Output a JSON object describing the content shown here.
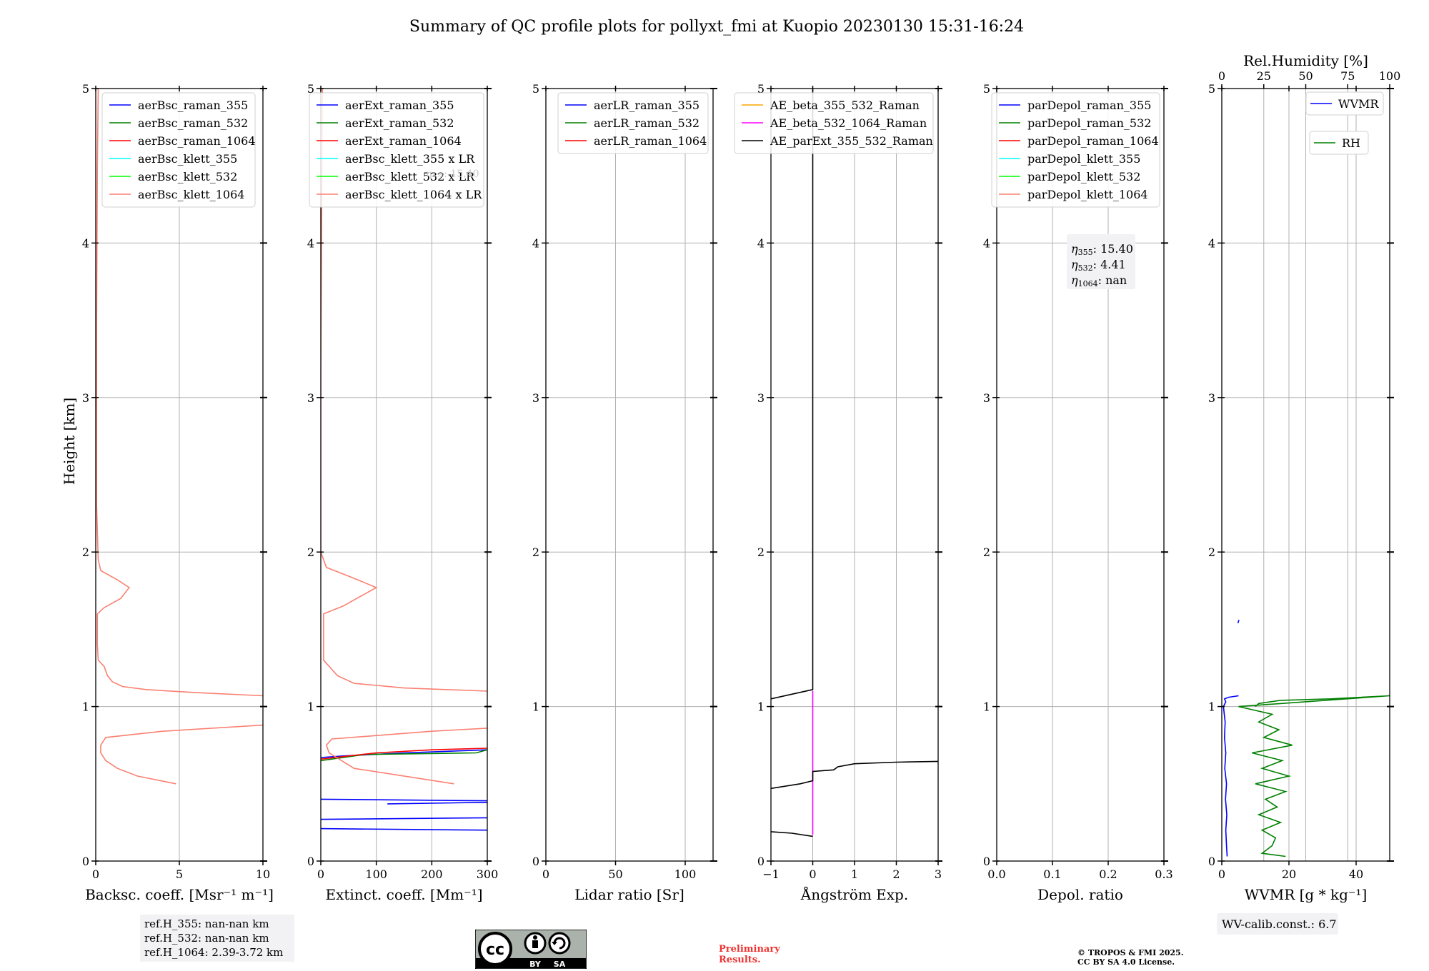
{
  "title": "Summary of QC profile plots for pollyxt_fmi at Kuopio 20230130 15:31-16:24",
  "chart_data": [
    {
      "type": "line",
      "xlabel": "Backsc. coeff. [Msr⁻¹ m⁻¹]",
      "ylabel": "Height [km]",
      "xlim": [
        0,
        10
      ],
      "ylim": [
        0,
        5
      ],
      "xticks": [
        "0",
        "5",
        "10"
      ],
      "xtick_values": [
        0,
        5,
        10
      ],
      "yticks": [
        "0",
        "1",
        "2",
        "3",
        "4",
        "5"
      ],
      "grid": true,
      "legend_position": "top-right",
      "series": [
        {
          "name": "aerBsc_raman_355",
          "color": "#0000ff",
          "points": []
        },
        {
          "name": "aerBsc_raman_532",
          "color": "#008000",
          "points": []
        },
        {
          "name": "aerBsc_raman_1064",
          "color": "#ff0000",
          "points": []
        },
        {
          "name": "aerBsc_klett_355",
          "color": "#00ffff",
          "points": []
        },
        {
          "name": "aerBsc_klett_532",
          "color": "#00ff00",
          "points": []
        },
        {
          "name": "aerBsc_klett_1064",
          "color": "#fa8072",
          "points": [
            [
              4.8,
              0.5
            ],
            [
              2.5,
              0.55
            ],
            [
              1.3,
              0.6
            ],
            [
              0.6,
              0.65
            ],
            [
              0.3,
              0.7
            ],
            [
              0.3,
              0.75
            ],
            [
              0.6,
              0.8
            ],
            [
              4,
              0.84
            ],
            [
              10,
              0.88
            ]
          ]
        },
        {
          "name": "aerBsc_klett_1064",
          "color": "#fa8072",
          "points": [
            [
              10,
              1.07
            ],
            [
              6,
              1.09
            ],
            [
              3,
              1.11
            ],
            [
              1.6,
              1.13
            ],
            [
              1,
              1.16
            ],
            [
              0.7,
              1.2
            ],
            [
              0.5,
              1.26
            ],
            [
              0.15,
              1.3
            ],
            [
              0.1,
              1.4
            ],
            [
              0.1,
              1.6
            ],
            [
              0.5,
              1.64
            ],
            [
              1.5,
              1.7
            ],
            [
              2,
              1.77
            ],
            [
              1.3,
              1.82
            ],
            [
              0.3,
              1.88
            ],
            [
              0.15,
              1.95
            ],
            [
              0.05,
              2.3
            ],
            [
              0.05,
              3.5
            ],
            [
              0.1,
              4.5
            ],
            [
              0.15,
              5
            ]
          ]
        }
      ]
    },
    {
      "type": "line",
      "xlabel": "Extinct. coeff. [Mm⁻¹]",
      "xlim": [
        0,
        300
      ],
      "ylim": [
        0,
        5
      ],
      "xticks": [
        "0",
        "100",
        "200",
        "300"
      ],
      "xtick_values": [
        0,
        100,
        200,
        300
      ],
      "yticks": [
        "0",
        "1",
        "2",
        "3",
        "4",
        "5"
      ],
      "grid": true,
      "legend_position": "top-right",
      "series": [
        {
          "name": "aerExt_raman_355",
          "color": "#0000ff",
          "points": [
            [
              300,
              0.2
            ],
            [
              0,
              0.21
            ]
          ]
        },
        {
          "name": "aerExt_raman_355",
          "color": "#0000ff",
          "points": [
            [
              0,
              0.27
            ],
            [
              300,
              0.28
            ]
          ]
        },
        {
          "name": "aerExt_raman_355",
          "color": "#0000ff",
          "points": [
            [
              120,
              0.37
            ],
            [
              300,
              0.38
            ]
          ]
        },
        {
          "name": "aerExt_raman_355",
          "color": "#0000ff",
          "points": [
            [
              0,
              0.4
            ],
            [
              300,
              0.39
            ]
          ]
        },
        {
          "name": "aerExt_raman_355",
          "color": "#0000ff",
          "points": [
            [
              0,
              0.67
            ],
            [
              40,
              0.68
            ],
            [
              150,
              0.7
            ],
            [
              300,
              0.72
            ]
          ]
        },
        {
          "name": "aerExt_raman_532",
          "color": "#008000",
          "points": [
            [
              0,
              0.65
            ],
            [
              80,
              0.69
            ],
            [
              280,
              0.7
            ],
            [
              300,
              0.72
            ]
          ]
        },
        {
          "name": "aerExt_raman_1064",
          "color": "#ff0000",
          "points": [
            [
              0,
              0.66
            ],
            [
              100,
              0.7
            ],
            [
              200,
              0.72
            ],
            [
              300,
              0.73
            ]
          ]
        },
        {
          "name": "aerBsc_klett_355 x LR",
          "color": "#00ffff",
          "points": []
        },
        {
          "name": "aerBsc_klett_532 x LR",
          "color": "#00ff00",
          "points": []
        },
        {
          "name": "aerBsc_klett_1064 x LR",
          "color": "#fa8072",
          "points": [
            [
              240,
              0.5
            ],
            [
              60,
              0.6
            ],
            [
              15,
              0.7
            ],
            [
              10,
              0.75
            ],
            [
              20,
              0.79
            ],
            [
              200,
              0.84
            ],
            [
              300,
              0.86
            ]
          ]
        },
        {
          "name": "aerBsc_klett_1064 x LR",
          "color": "#fa8072",
          "points": [
            [
              300,
              1.1
            ],
            [
              150,
              1.12
            ],
            [
              60,
              1.15
            ],
            [
              30,
              1.2
            ],
            [
              5,
              1.3
            ],
            [
              5,
              1.6
            ],
            [
              40,
              1.65
            ],
            [
              100,
              1.77
            ],
            [
              60,
              1.83
            ],
            [
              10,
              1.9
            ],
            [
              0,
              2.0
            ],
            [
              0,
              3.2
            ],
            [
              2,
              4.5
            ],
            [
              3,
              5
            ]
          ]
        }
      ],
      "legend_overflow_text": "η₃₅₅: 15.40"
    },
    {
      "type": "line",
      "xlabel": "Lidar ratio [Sr]",
      "xlim": [
        0,
        120
      ],
      "ylim": [
        0,
        5
      ],
      "xticks": [
        "0",
        "50",
        "100"
      ],
      "xtick_values": [
        0,
        50,
        100
      ],
      "yticks": [
        "0",
        "1",
        "2",
        "3",
        "4",
        "5"
      ],
      "grid": true,
      "legend_position": "top-right",
      "series": [
        {
          "name": "aerLR_raman_355",
          "color": "#0000ff",
          "points": []
        },
        {
          "name": "aerLR_raman_532",
          "color": "#008000",
          "points": []
        },
        {
          "name": "aerLR_raman_1064",
          "color": "#ff0000",
          "points": []
        }
      ]
    },
    {
      "type": "line",
      "xlabel": "Ångström Exp.",
      "xlim": [
        -1,
        3
      ],
      "ylim": [
        0,
        5
      ],
      "xticks": [
        "−1",
        "0",
        "1",
        "2",
        "3"
      ],
      "xtick_values": [
        -1,
        0,
        1,
        2,
        3
      ],
      "yticks": [
        "0",
        "1",
        "2",
        "3",
        "4",
        "5"
      ],
      "grid": true,
      "legend_position": "top-left",
      "series": [
        {
          "name": "AE_beta_355_532_Raman",
          "color": "#ffa500",
          "points": []
        },
        {
          "name": "AE_beta_532_1064_Raman",
          "color": "#ff00ff",
          "points": [
            [
              0,
              0.17
            ],
            [
              0,
              1.1
            ]
          ]
        },
        {
          "name": "AE_parExt_355_532_Raman",
          "color": "#000000",
          "points": [
            [
              0,
              0.16
            ],
            [
              -0.5,
              0.18
            ],
            [
              -1,
              0.19
            ]
          ]
        },
        {
          "name": "AE_parExt_355_532_Raman",
          "color": "#000000",
          "points": [
            [
              -1,
              0.47
            ],
            [
              -0.3,
              0.5
            ],
            [
              0,
              0.52
            ],
            [
              0,
              0.58
            ],
            [
              0.5,
              0.59
            ],
            [
              0.6,
              0.61
            ],
            [
              1,
              0.63
            ],
            [
              2,
              0.64
            ],
            [
              3,
              0.645
            ]
          ]
        },
        {
          "name": "AE_parExt_355_532_Raman",
          "color": "#000000",
          "points": [
            [
              -1,
              1.05
            ],
            [
              -0.5,
              1.08
            ],
            [
              0,
              1.11
            ],
            [
              0,
              1.12
            ],
            [
              0,
              5
            ]
          ]
        }
      ]
    },
    {
      "type": "line",
      "xlabel": "Depol. ratio",
      "xlim": [
        0,
        0.3
      ],
      "ylim": [
        0,
        5
      ],
      "xticks": [
        "0.0",
        "0.1",
        "0.2",
        "0.3"
      ],
      "xtick_values": [
        0,
        0.1,
        0.2,
        0.3
      ],
      "yticks": [
        "0",
        "1",
        "2",
        "3",
        "4",
        "5"
      ],
      "grid": true,
      "legend_position": "top-right",
      "series": [
        {
          "name": "parDepol_raman_355",
          "color": "#0000ff",
          "points": []
        },
        {
          "name": "parDepol_raman_532",
          "color": "#008000",
          "points": []
        },
        {
          "name": "parDepol_raman_1064",
          "color": "#ff0000",
          "points": []
        },
        {
          "name": "parDepol_klett_355",
          "color": "#00ffff",
          "points": []
        },
        {
          "name": "parDepol_klett_532",
          "color": "#00ff00",
          "points": []
        },
        {
          "name": "parDepol_klett_1064",
          "color": "#fa8072",
          "points": []
        }
      ],
      "annotation": {
        "eta355_label": "η",
        "eta355_sub": "355",
        "eta355_value": ": 15.40",
        "eta532_label": "η",
        "eta532_sub": "532",
        "eta532_value": ": 4.41",
        "eta1064_label": "η",
        "eta1064_sub": "1064",
        "eta1064_value": ": nan"
      }
    },
    {
      "type": "line",
      "xlabel": "WVMR [g * kg⁻¹]",
      "top_xlabel": "Rel.Humidity [%]",
      "xlim": [
        0,
        50
      ],
      "ylim": [
        0,
        5
      ],
      "top_xlim": [
        0,
        100
      ],
      "xticks": [
        "0",
        "20",
        "40"
      ],
      "xtick_values": [
        0,
        20,
        40
      ],
      "top_xticks": [
        "0",
        "25",
        "50",
        "75",
        "100"
      ],
      "top_xtick_values": [
        0,
        25,
        50,
        75,
        100
      ],
      "yticks": [
        "0",
        "1",
        "2",
        "3",
        "4",
        "5"
      ],
      "grid": true,
      "legend_position": "top-right",
      "series": [
        {
          "name": "WVMR",
          "color": "#0000ff",
          "axis": "bottom",
          "points": [
            [
              1.6,
              0.03
            ],
            [
              1.4,
              0.1
            ],
            [
              1.2,
              0.2
            ],
            [
              1.5,
              0.3
            ],
            [
              1.1,
              0.4
            ],
            [
              1.4,
              0.5
            ],
            [
              0.9,
              0.6
            ],
            [
              1.2,
              0.7
            ],
            [
              0.8,
              0.8
            ],
            [
              1.0,
              0.9
            ],
            [
              0.5,
              1.0
            ],
            [
              1.2,
              1.03
            ],
            [
              0.8,
              1.05
            ],
            [
              2,
              1.06
            ],
            [
              5,
              1.07
            ]
          ]
        },
        {
          "name": "WVMR",
          "color": "#0000ff",
          "axis": "bottom",
          "points": [
            [
              4.8,
              1.54
            ],
            [
              5.1,
              1.56
            ]
          ]
        },
        {
          "name": "RH",
          "color": "#008000",
          "axis": "top",
          "points": [
            [
              38,
              0.03
            ],
            [
              24,
              0.05
            ],
            [
              30,
              0.1
            ],
            [
              32,
              0.15
            ],
            [
              24,
              0.2
            ],
            [
              35,
              0.25
            ],
            [
              22,
              0.3
            ],
            [
              33,
              0.35
            ],
            [
              26,
              0.4
            ],
            [
              38,
              0.45
            ],
            [
              20,
              0.5
            ],
            [
              40,
              0.55
            ],
            [
              24,
              0.6
            ],
            [
              36,
              0.65
            ],
            [
              18,
              0.7
            ],
            [
              42,
              0.75
            ],
            [
              25,
              0.8
            ],
            [
              34,
              0.85
            ],
            [
              22,
              0.9
            ],
            [
              30,
              0.95
            ],
            [
              10,
              1.0
            ],
            [
              100,
              1.07
            ],
            [
              65,
              1.05
            ],
            [
              35,
              1.04
            ],
            [
              22,
              1.02
            ],
            [
              20,
              1.0
            ]
          ]
        }
      ],
      "annotation": {
        "wv_calib": "WV-calib.const.: 6.7"
      }
    }
  ],
  "footer": {
    "ref_h_355": "ref.H_355: nan-nan km",
    "ref_h_532": "ref.H_532: nan-nan km",
    "ref_h_1064": "ref.H_1064: 2.39-3.72 km",
    "license_badge": {
      "cc": "cc",
      "by": "BY",
      "sa": "SA"
    },
    "prelim_line1": "Preliminary",
    "prelim_line2": "Results.",
    "copyright_line1": "© TROPOS & FMI 2025.",
    "copyright_line2": "CC BY SA 4.0 License."
  }
}
